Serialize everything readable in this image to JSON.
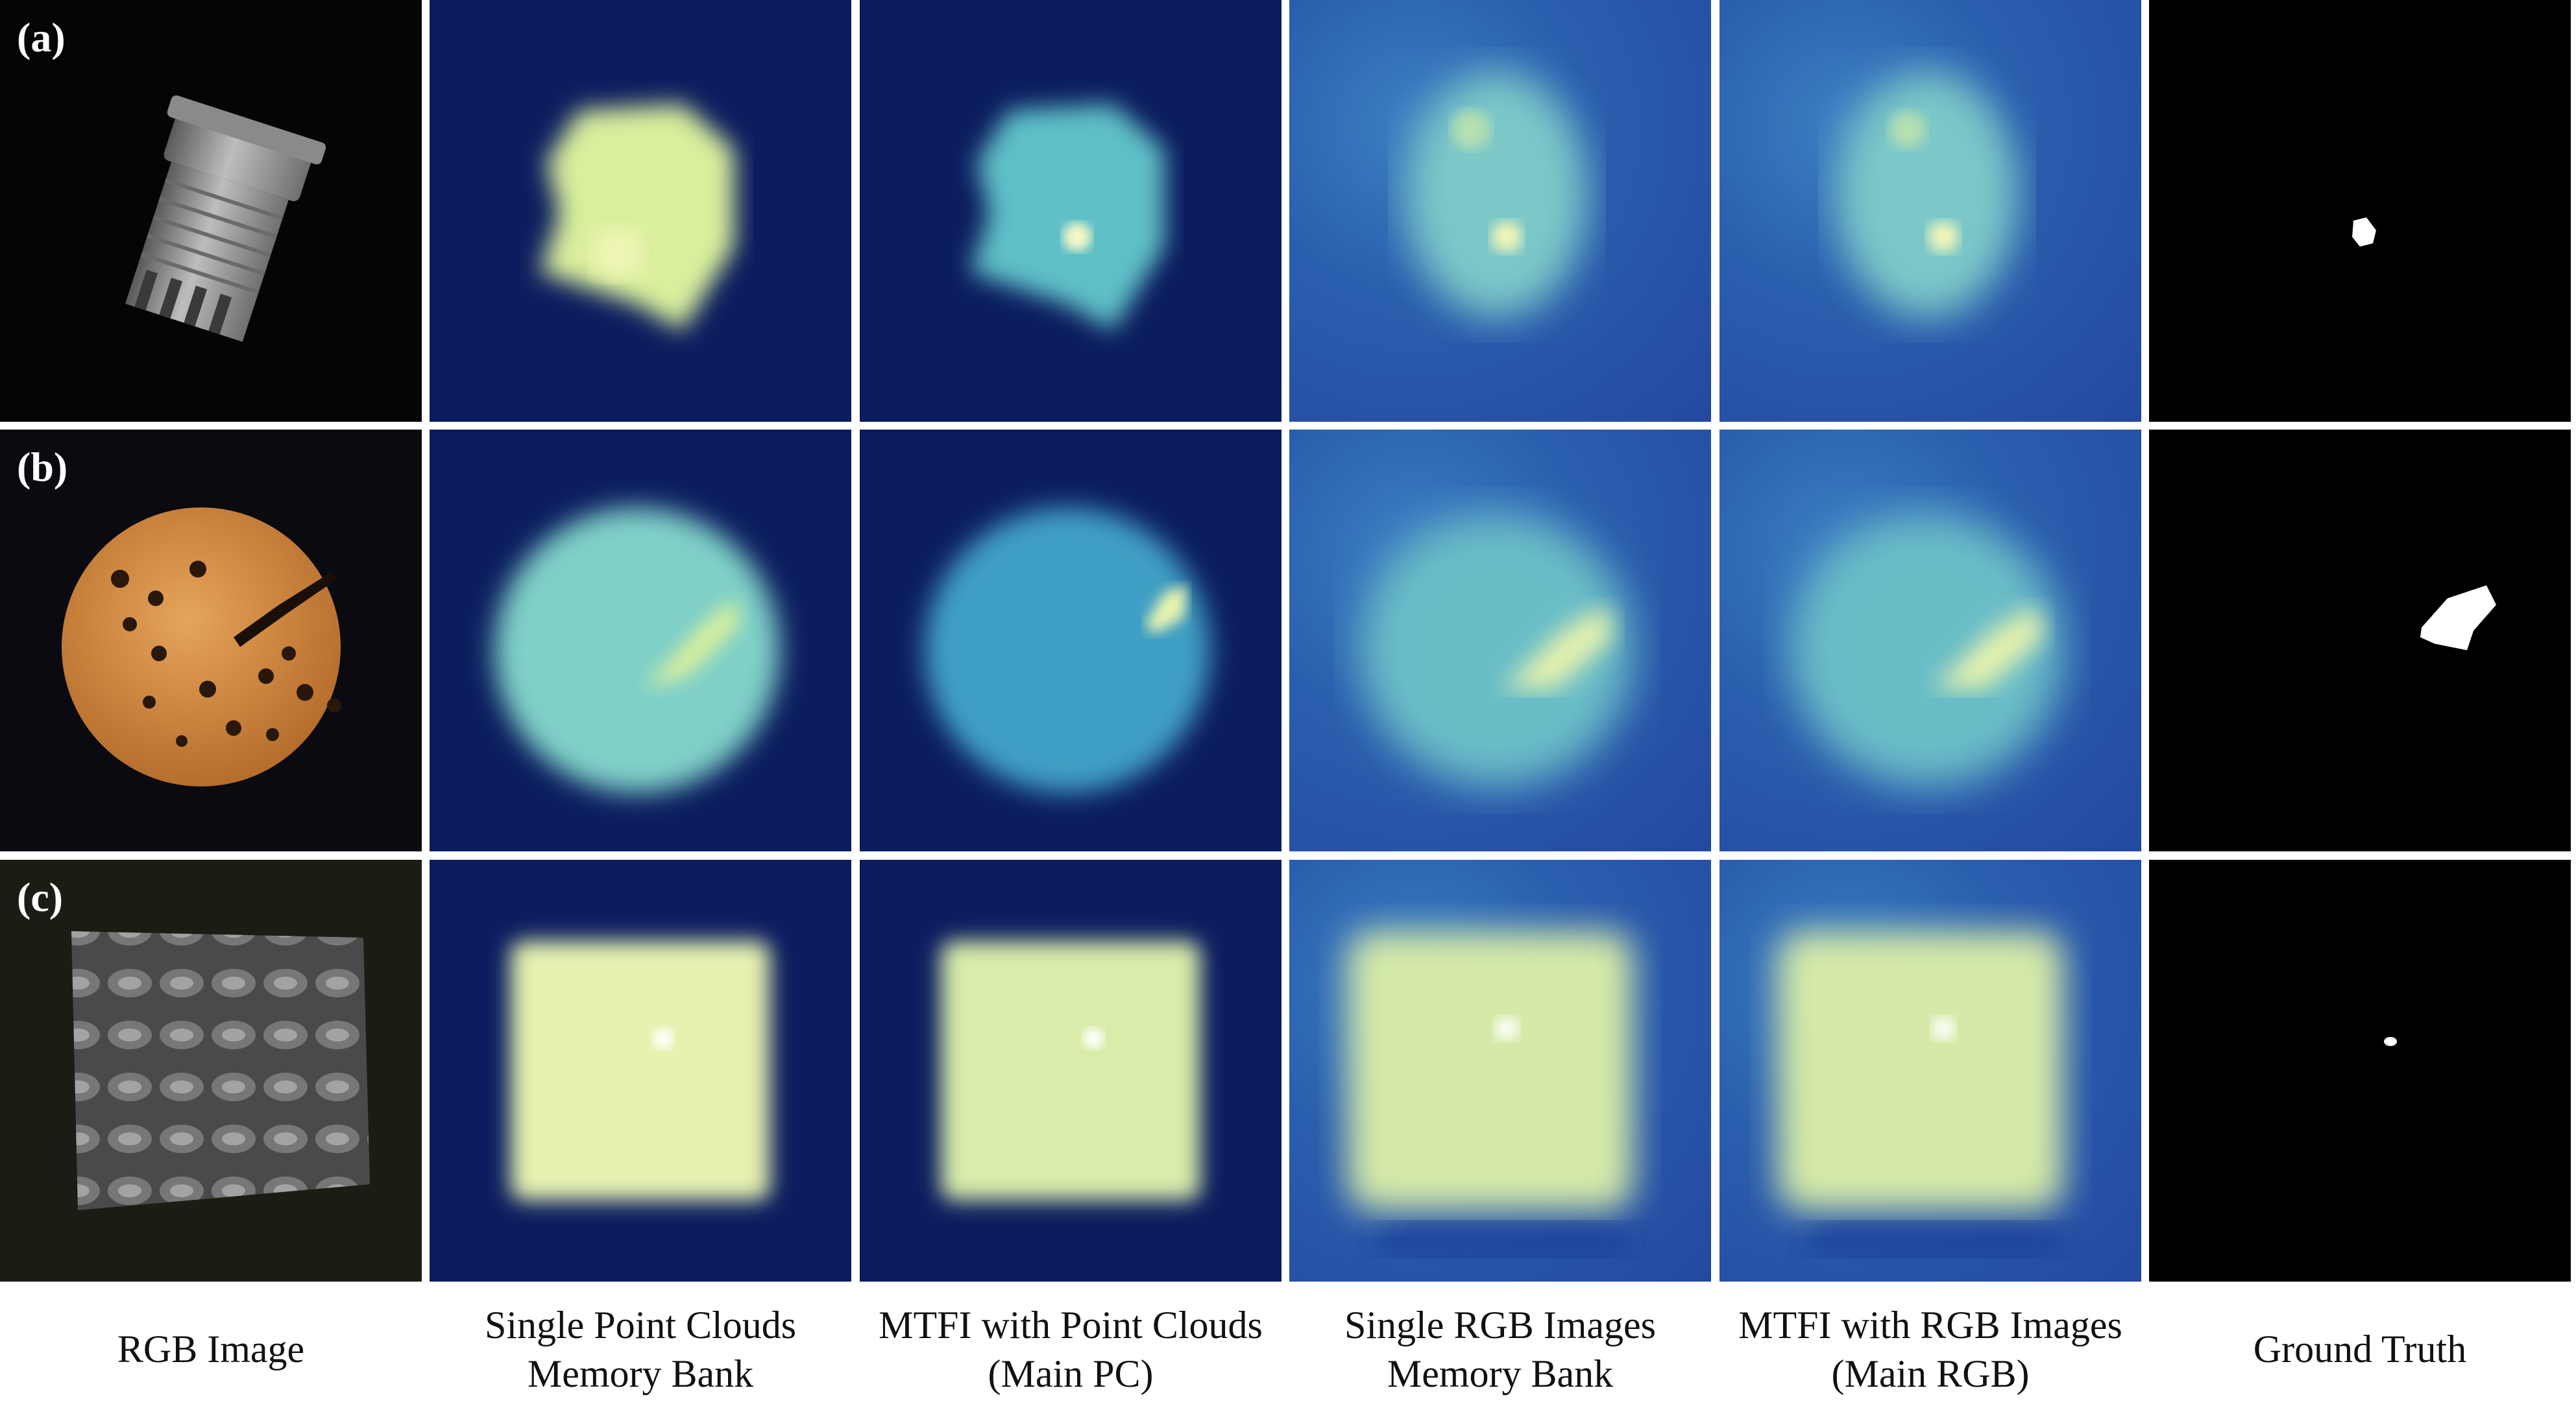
{
  "rows": [
    {
      "label": "(a)"
    },
    {
      "label": "(b)"
    },
    {
      "label": "(c)"
    }
  ],
  "columns": [
    {
      "line1": "RGB Image",
      "line2": ""
    },
    {
      "line1": "Single Point Clouds",
      "line2": "Memory Bank"
    },
    {
      "line1": "MTFI with Point Clouds",
      "line2": "(Main PC)"
    },
    {
      "line1": "Single RGB Images",
      "line2": "Memory Bank"
    },
    {
      "line1": "MTFI with RGB Images",
      "line2": "(Main RGB)"
    },
    {
      "line1": "Ground Truth",
      "line2": ""
    }
  ],
  "colors": {
    "heatmap_low": "#0b1d5e",
    "heatmap_mid": "#3fa6c6",
    "heatmap_high": "#f2f6b8",
    "mask": "#ffffff"
  }
}
